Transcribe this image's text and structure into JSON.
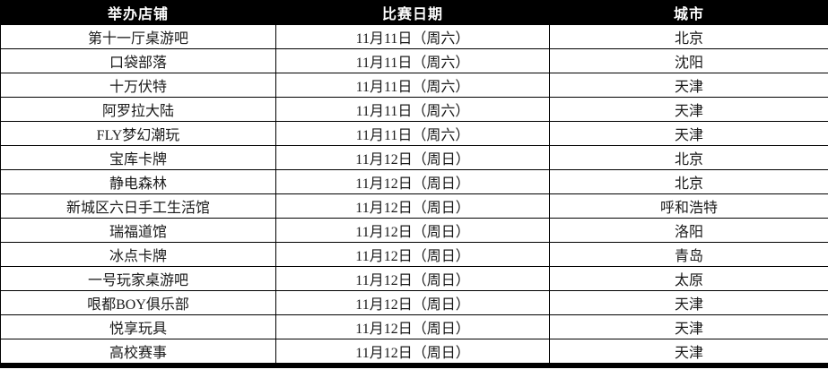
{
  "table": {
    "name": "tournament-schedule",
    "columns": [
      {
        "key": "store",
        "label": "举办店铺"
      },
      {
        "key": "date",
        "label": "比赛日期"
      },
      {
        "key": "city",
        "label": "城市"
      }
    ],
    "rows": [
      {
        "store": "第十一厅桌游吧",
        "date": "11月11日（周六）",
        "city": "北京"
      },
      {
        "store": "口袋部落",
        "date": "11月11日（周六）",
        "city": "沈阳"
      },
      {
        "store": "十万伏特",
        "date": "11月11日（周六）",
        "city": "天津"
      },
      {
        "store": "阿罗拉大陆",
        "date": "11月11日（周六）",
        "city": "天津"
      },
      {
        "store": "FLY梦幻潮玩",
        "date": "11月11日（周六）",
        "city": "天津"
      },
      {
        "store": "宝库卡牌",
        "date": "11月12日（周日）",
        "city": "北京"
      },
      {
        "store": "静电森林",
        "date": "11月12日（周日）",
        "city": "北京"
      },
      {
        "store": "新城区六日手工生活馆",
        "date": "11月12日（周日）",
        "city": "呼和浩特"
      },
      {
        "store": "瑞福道馆",
        "date": "11月12日（周日）",
        "city": "洛阳"
      },
      {
        "store": "冰点卡牌",
        "date": "11月12日（周日）",
        "city": "青岛"
      },
      {
        "store": "一号玩家桌游吧",
        "date": "11月12日（周日）",
        "city": "太原"
      },
      {
        "store": "哏都BOY俱乐部",
        "date": "11月12日（周日）",
        "city": "天津"
      },
      {
        "store": "悦享玩具",
        "date": "11月12日（周日）",
        "city": "天津"
      },
      {
        "store": "高校赛事",
        "date": "11月12日（周日）",
        "city": "天津"
      }
    ],
    "colors": {
      "header_bg": "#000000",
      "header_text": "#ffffff",
      "row_bg": "#ffffff",
      "border": "#000000"
    }
  }
}
